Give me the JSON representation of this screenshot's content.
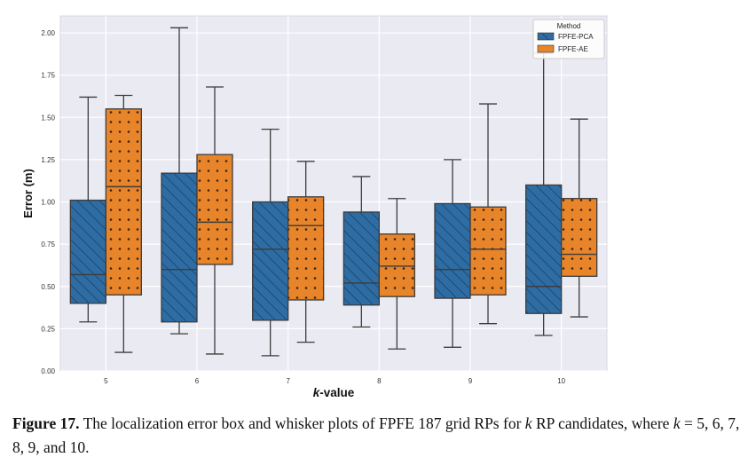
{
  "chart_data": {
    "type": "box",
    "categories": [
      "5",
      "6",
      "7",
      "8",
      "9",
      "10"
    ],
    "xlabel_prefix": "k",
    "xlabel_suffix": "-value",
    "ylabel": "Error (m)",
    "ylim": [
      0,
      2.1
    ],
    "yticks": [
      "0.00",
      "0.25",
      "0.50",
      "0.75",
      "1.00",
      "1.25",
      "1.50",
      "1.75",
      "2.00"
    ],
    "ytick_values": [
      0,
      0.25,
      0.5,
      0.75,
      1.0,
      1.25,
      1.5,
      1.75,
      2.0
    ],
    "grid": true,
    "legend": {
      "title": "Method",
      "placement": "top-right"
    },
    "series": [
      {
        "name": "FPFE-PCA",
        "color": "#2e6da4",
        "hatch": "diagonal",
        "boxes": [
          {
            "min": 0.29,
            "q1": 0.4,
            "median": 0.57,
            "q3": 1.01,
            "max": 1.62
          },
          {
            "min": 0.22,
            "q1": 0.29,
            "median": 0.6,
            "q3": 1.17,
            "max": 2.03
          },
          {
            "min": 0.09,
            "q1": 0.3,
            "median": 0.72,
            "q3": 1.0,
            "max": 1.43
          },
          {
            "min": 0.26,
            "q1": 0.39,
            "median": 0.52,
            "q3": 0.94,
            "max": 1.15
          },
          {
            "min": 0.14,
            "q1": 0.43,
            "median": 0.6,
            "q3": 0.99,
            "max": 1.25
          },
          {
            "min": 0.21,
            "q1": 0.34,
            "median": 0.5,
            "q3": 1.1,
            "max": 1.88
          }
        ]
      },
      {
        "name": "FPFE-AE",
        "color": "#e8842a",
        "hatch": "dots",
        "boxes": [
          {
            "min": 0.11,
            "q1": 0.45,
            "median": 1.09,
            "q3": 1.55,
            "max": 1.63
          },
          {
            "min": 0.1,
            "q1": 0.63,
            "median": 0.88,
            "q3": 1.28,
            "max": 1.68
          },
          {
            "min": 0.17,
            "q1": 0.42,
            "median": 0.86,
            "q3": 1.03,
            "max": 1.24
          },
          {
            "min": 0.13,
            "q1": 0.44,
            "median": 0.62,
            "q3": 0.81,
            "max": 1.02
          },
          {
            "min": 0.28,
            "q1": 0.45,
            "median": 0.72,
            "q3": 0.97,
            "max": 1.58
          },
          {
            "min": 0.32,
            "q1": 0.56,
            "median": 0.69,
            "q3": 1.02,
            "max": 1.49
          }
        ]
      }
    ]
  },
  "caption": {
    "label": "Figure 17.",
    "part1": " The localization error box and whisker plots of FPFE 187 grid RPs for ",
    "k1": "k",
    "part2": " RP candidates, where ",
    "k2": "k",
    "part3": " = 5, 6, 7, 8, 9, and 10."
  }
}
